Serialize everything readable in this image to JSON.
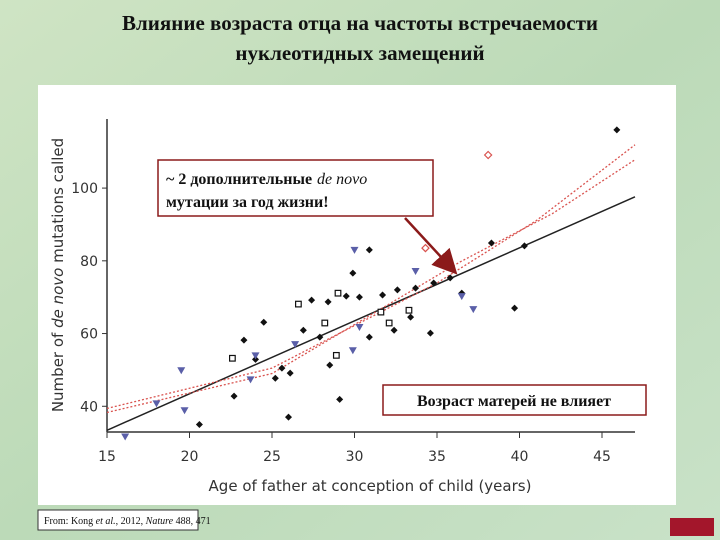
{
  "slide_title": [
    "Влияние возраста отца на частоты встречаемости",
    "нуклеотидных замещений"
  ],
  "source": [
    "From: Kong ",
    "et al.",
    ", 2012, ",
    "Nature",
    " 488, 471"
  ],
  "chart_data": {
    "type": "scatter",
    "x_label": "Age of father at conception of child (years)",
    "y_label": [
      "Number of ",
      "de novo",
      " mutations called"
    ],
    "xlim": [
      15,
      47
    ],
    "ylim": [
      31,
      119
    ],
    "xticks": [
      15,
      20,
      25,
      30,
      35,
      40,
      45
    ],
    "yticks": [
      40,
      60,
      80,
      100
    ],
    "series": [
      {
        "marker": "diamond",
        "color": "#111111",
        "x": [
          45.9,
          38.3,
          40.3,
          30.9,
          29.9,
          34.8,
          35.8,
          36.5,
          33.7,
          32.6,
          31.7,
          30.3,
          29.5,
          28.4,
          27.4,
          27.9,
          26.9,
          30.9,
          34.6,
          39.7,
          24.5,
          23.3,
          24.0,
          25.6,
          26.1,
          25.2,
          22.7,
          20.6,
          26.0,
          29.1,
          28.5,
          32.4,
          33.4
        ],
        "values": [
          116.0,
          84.9,
          84.1,
          83.0,
          76.6,
          73.9,
          75.3,
          71.1,
          72.5,
          72.0,
          70.6,
          70.0,
          70.3,
          68.7,
          69.2,
          59.0,
          60.9,
          59.0,
          60.1,
          67.0,
          63.1,
          58.2,
          52.9,
          50.5,
          49.1,
          47.7,
          42.8,
          35.0,
          37.0,
          41.9,
          51.3,
          60.9,
          64.5
        ]
      },
      {
        "marker": "square",
        "color": "#111111",
        "x": [
          26.6,
          29.0,
          28.2,
          32.1,
          22.6,
          28.9,
          33.3,
          31.6
        ],
        "values": [
          68.1,
          71.1,
          62.9,
          62.9,
          53.2,
          54.0,
          66.4,
          65.9
        ]
      },
      {
        "marker": "triangle",
        "color": "#5a5fa8",
        "x": [
          16.1,
          18.0,
          19.7,
          19.5,
          24.0,
          23.7,
          26.4,
          29.9,
          30.0,
          33.7,
          36.5,
          37.2,
          30.3
        ],
        "values": [
          31.7,
          40.8,
          38.9,
          49.9,
          54.0,
          47.4,
          57.1,
          55.4,
          83.0,
          77.2,
          70.3,
          66.7,
          61.8
        ]
      },
      {
        "marker": "open-diamond",
        "color": "#d9534f",
        "x": [
          38.1,
          34.3
        ],
        "values": [
          109.1,
          83.5
        ]
      }
    ],
    "lines": [
      {
        "style": "solid",
        "color": "#222222",
        "x": [
          15,
          47
        ],
        "values": [
          33.4,
          97.6
        ]
      },
      {
        "style": "dotted",
        "color": "#d9534f",
        "x": [
          15,
          25,
          35,
          41,
          47
        ],
        "values": [
          39.4,
          50.5,
          73.9,
          91.0,
          111.9
        ]
      },
      {
        "style": "dotted",
        "color": "#d9534f",
        "x": [
          15,
          25,
          36.4,
          42,
          47
        ],
        "values": [
          38.3,
          49.0,
          79.7,
          93.0,
          107.8
        ]
      }
    ],
    "annotations": [
      {
        "line1": [
          "~ 2 дополнительные",
          "de novo"
        ],
        "line2": "мутации за год жизни!"
      },
      {
        "text": "Возраст матерей не влияет"
      }
    ]
  }
}
